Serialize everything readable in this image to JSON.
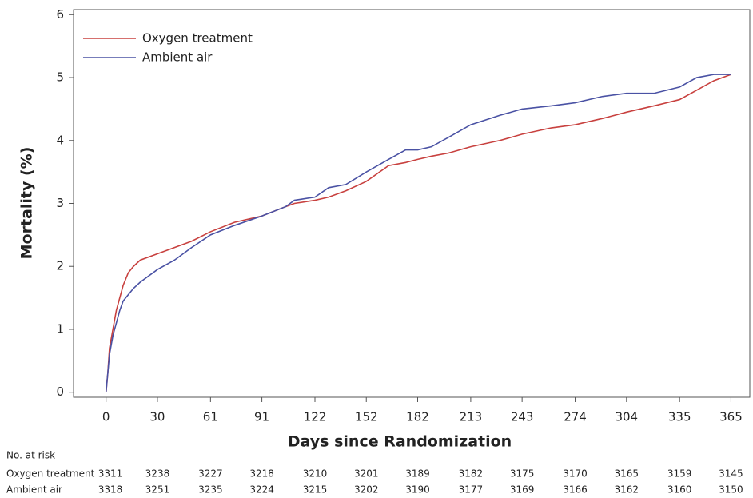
{
  "chart_data": {
    "type": "line",
    "y_label": "Mortality (%)",
    "x_label": "Days since Randomization",
    "x": [
      0,
      1,
      2,
      4,
      6,
      8,
      10,
      13,
      16,
      20,
      30,
      40,
      50,
      61,
      75,
      91,
      105,
      110,
      122,
      130,
      140,
      152,
      165,
      175,
      182,
      190,
      200,
      213,
      230,
      243,
      260,
      274,
      290,
      304,
      320,
      335,
      345,
      355,
      365
    ],
    "series": [
      {
        "name": "Oxygen treatment",
        "color": "#c8413f",
        "values": [
          0,
          0.3,
          0.7,
          1.0,
          1.3,
          1.5,
          1.7,
          1.9,
          2.0,
          2.1,
          2.2,
          2.3,
          2.4,
          2.55,
          2.7,
          2.8,
          2.95,
          3.0,
          3.05,
          3.1,
          3.2,
          3.35,
          3.6,
          3.65,
          3.7,
          3.75,
          3.8,
          3.9,
          4.0,
          4.1,
          4.2,
          4.25,
          4.35,
          4.45,
          4.55,
          4.65,
          4.8,
          4.95,
          5.05
        ]
      },
      {
        "name": "Ambient air",
        "color": "#4a52a4",
        "values": [
          0,
          0.3,
          0.6,
          0.9,
          1.1,
          1.3,
          1.45,
          1.55,
          1.65,
          1.75,
          1.95,
          2.1,
          2.3,
          2.5,
          2.65,
          2.8,
          2.95,
          3.05,
          3.1,
          3.25,
          3.3,
          3.5,
          3.7,
          3.85,
          3.85,
          3.9,
          4.05,
          4.25,
          4.4,
          4.5,
          4.55,
          4.6,
          4.7,
          4.75,
          4.75,
          4.85,
          5.0,
          5.05,
          5.05
        ]
      }
    ],
    "xlim": [
      -19,
      376
    ],
    "xticks": [
      0,
      30,
      61,
      91,
      122,
      152,
      182,
      213,
      243,
      274,
      304,
      335,
      365
    ],
    "ylim": [
      -0.08,
      6.08
    ],
    "yticks": [
      0,
      1,
      2,
      3,
      4,
      5,
      6
    ],
    "legend": "upper left",
    "risk_table": {
      "title": "No. at risk",
      "rows": [
        {
          "name": "Oxygen treatment",
          "values": [
            3311,
            3238,
            3227,
            3218,
            3210,
            3201,
            3189,
            3182,
            3175,
            3170,
            3165,
            3159,
            3145
          ]
        },
        {
          "name": "Ambient air",
          "values": [
            3318,
            3251,
            3235,
            3224,
            3215,
            3202,
            3190,
            3177,
            3169,
            3166,
            3162,
            3160,
            3150
          ]
        }
      ]
    }
  }
}
